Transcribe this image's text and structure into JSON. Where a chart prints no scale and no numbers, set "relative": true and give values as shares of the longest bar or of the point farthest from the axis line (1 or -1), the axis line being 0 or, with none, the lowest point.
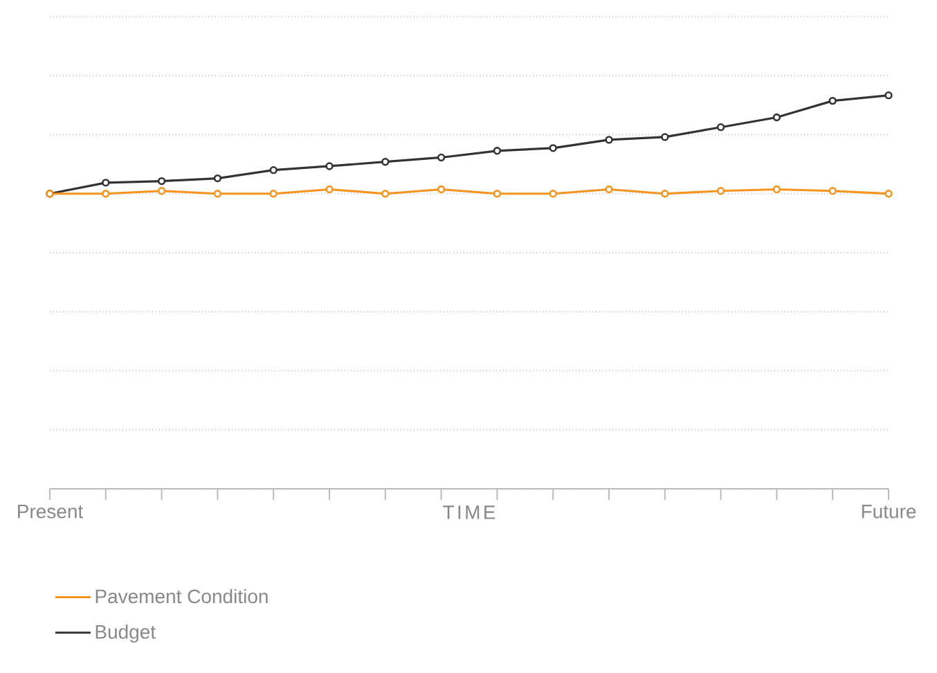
{
  "chart_data": {
    "type": "line",
    "relative": true,
    "xlabel": "TIME",
    "categories": [
      "Present",
      null,
      null,
      null,
      null,
      null,
      null,
      null,
      null,
      null,
      null,
      null,
      null,
      null,
      null,
      "Future"
    ],
    "series": [
      {
        "name": "Pavement Condition",
        "color": "#f7941d",
        "values": [
          0.75,
          0.75,
          0.757,
          0.75,
          0.75,
          0.761,
          0.75,
          0.761,
          0.75,
          0.75,
          0.761,
          0.75,
          0.757,
          0.761,
          0.757,
          0.75
        ]
      },
      {
        "name": "Budget",
        "color": "#333333",
        "values": [
          0.75,
          0.778,
          0.782,
          0.789,
          0.81,
          0.82,
          0.831,
          0.842,
          0.859,
          0.866,
          0.887,
          0.894,
          0.919,
          0.944,
          0.986,
          1
        ]
      }
    ],
    "grid": "y",
    "legend": "bottom",
    "marker": "circle",
    "line_style": "solid",
    "tick_labels": "x"
  }
}
